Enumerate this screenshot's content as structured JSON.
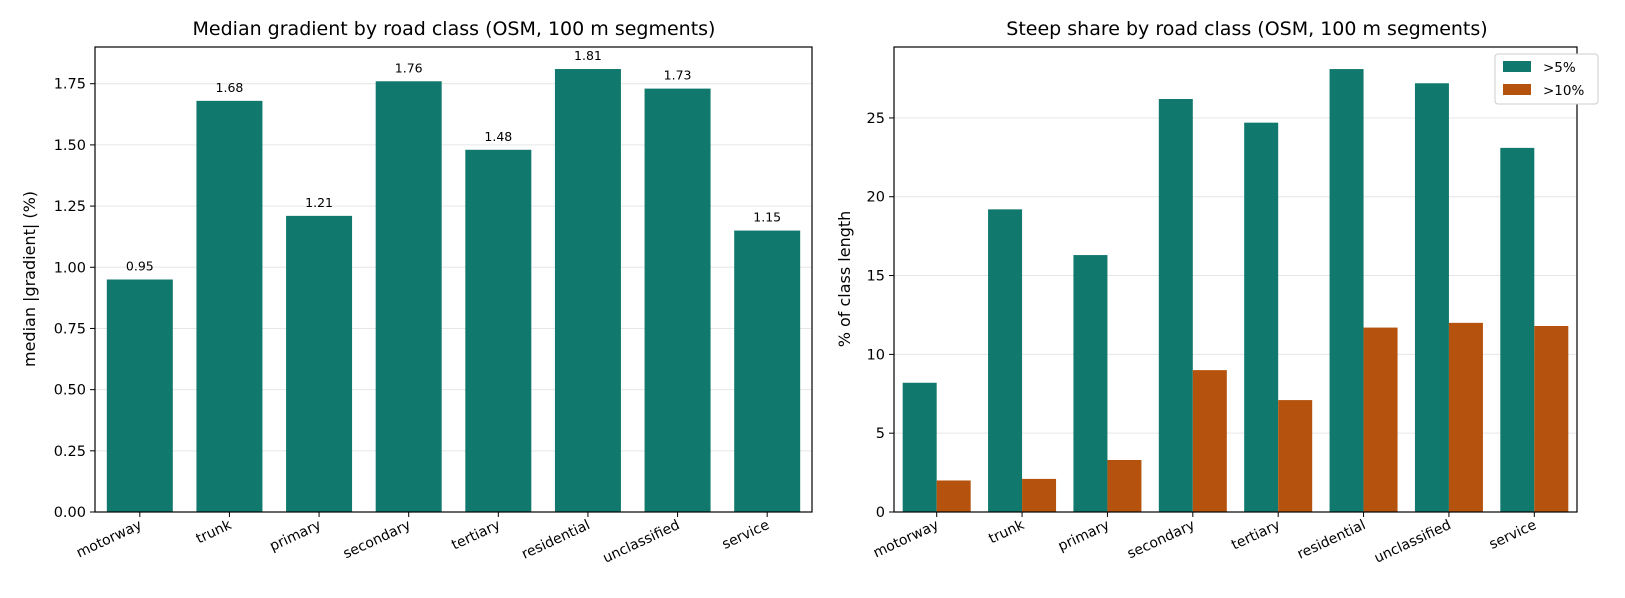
{
  "chart_data": [
    {
      "type": "bar",
      "title": "Median gradient by road class (OSM, 100 m segments)",
      "xlabel": "",
      "ylabel": "median |gradient| (%)",
      "categories": [
        "motorway",
        "trunk",
        "primary",
        "secondary",
        "tertiary",
        "residential",
        "unclassified",
        "service"
      ],
      "values": [
        0.95,
        1.68,
        1.21,
        1.76,
        1.48,
        1.81,
        1.73,
        1.15
      ],
      "data_labels": [
        "0.95",
        "1.68",
        "1.21",
        "1.76",
        "1.48",
        "1.81",
        "1.73",
        "1.15"
      ],
      "ylim": [
        0,
        1.9
      ],
      "yticks": [
        0.0,
        0.25,
        0.5,
        0.75,
        1.0,
        1.25,
        1.5,
        1.75
      ],
      "ytick_labels": [
        "0.00",
        "0.25",
        "0.50",
        "0.75",
        "1.00",
        "1.25",
        "1.50",
        "1.75"
      ],
      "grid": "y",
      "color": "#11786e"
    },
    {
      "type": "bar",
      "title": "Steep share by road class (OSM, 100 m segments)",
      "xlabel": "",
      "ylabel": "% of class length",
      "categories": [
        "motorway",
        "trunk",
        "primary",
        "secondary",
        "tertiary",
        "residential",
        "unclassified",
        "service"
      ],
      "series": [
        {
          "name": ">5%",
          "values": [
            8.2,
            19.2,
            16.3,
            26.2,
            24.7,
            28.1,
            27.2,
            23.1
          ],
          "color": "#11786e"
        },
        {
          "name": ">10%",
          "values": [
            2.0,
            2.1,
            3.3,
            9.0,
            7.1,
            11.7,
            12.0,
            11.8
          ],
          "color": "#b5520e"
        }
      ],
      "ylim": [
        0,
        29.5
      ],
      "yticks": [
        0,
        5,
        10,
        15,
        20,
        25
      ],
      "ytick_labels": [
        "0",
        "5",
        "10",
        "15",
        "20",
        "25"
      ],
      "grid": "y",
      "legend": "top-right"
    }
  ]
}
